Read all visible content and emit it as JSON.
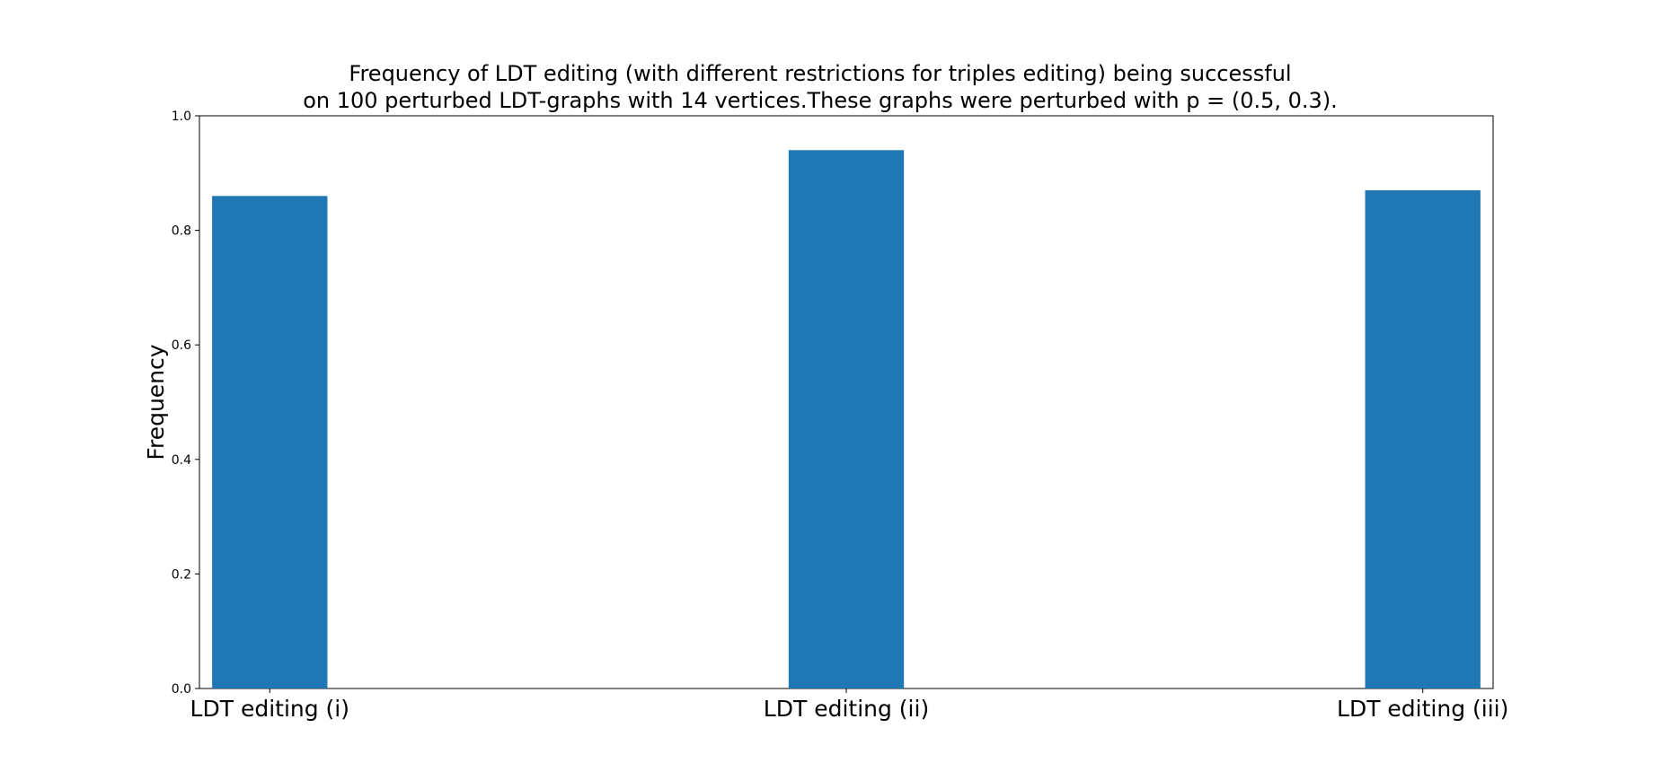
{
  "chart_data": {
    "type": "bar",
    "title_lines": [
      "Frequency of LDT editing (with different restrictions for triples editing) being successful",
      "on 100 perturbed LDT-graphs with 14 vertices.These graphs were perturbed with p = (0.5, 0.3)."
    ],
    "xlabel": "",
    "ylabel": "Frequency",
    "categories": [
      "LDT editing (i)",
      "LDT editing (ii)",
      "LDT editing (iii)"
    ],
    "values": [
      0.86,
      0.94,
      0.87
    ],
    "ylim": [
      0,
      1.0
    ],
    "yticks": [
      "0.0",
      "0.2",
      "0.4",
      "0.6",
      "0.8",
      "1.0"
    ],
    "grid": false,
    "bar_color": "#1f77b4"
  }
}
